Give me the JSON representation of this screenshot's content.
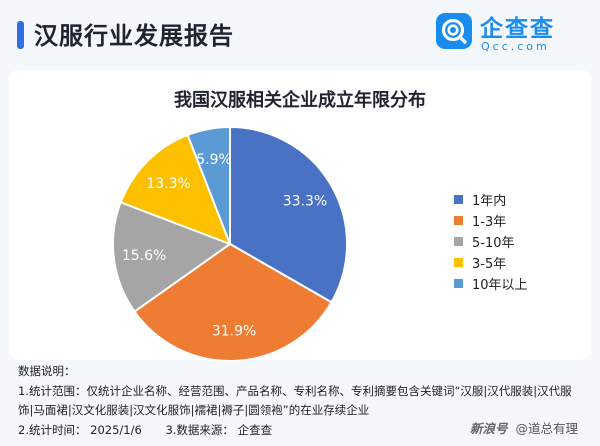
{
  "header": {
    "title": "汉服行业发展报告",
    "logo_name": "企查查",
    "logo_domain": "Qcc.com",
    "accent_color": "#2f6fe0",
    "logo_color": "#1a8cf0"
  },
  "chart_data": {
    "type": "pie",
    "title": "我国汉服相关企业成立年限分布",
    "categories": [
      "1年内",
      "1-3年",
      "5-10年",
      "3-5年",
      "10年以上"
    ],
    "values": [
      33.3,
      31.9,
      15.6,
      13.3,
      5.9
    ],
    "value_labels": [
      "33.3%",
      "31.9%",
      "15.6%",
      "13.3%",
      "5.9%"
    ],
    "colors": [
      "#4a72c4",
      "#ee7d33",
      "#a5a5a5",
      "#fcc000",
      "#5b9bd5"
    ],
    "legend_position": "right"
  },
  "notes": {
    "heading": "数据说明：",
    "line1": "1.统计范围：仅统计企业名称、经营范围、产品名称、专利名称、专利摘要包含关键词“汉服|汉代服装|汉代服",
    "line2": "饰|马面裙|汉文化服装|汉文化服饰|襦裙|褥子|圆领袍”的在业存续企业",
    "time": "2.统计时间：  2025/1/6",
    "source": "3.数据来源：  企查查"
  },
  "watermark": {
    "text": "@道总有理",
    "badge": "新浪号"
  }
}
